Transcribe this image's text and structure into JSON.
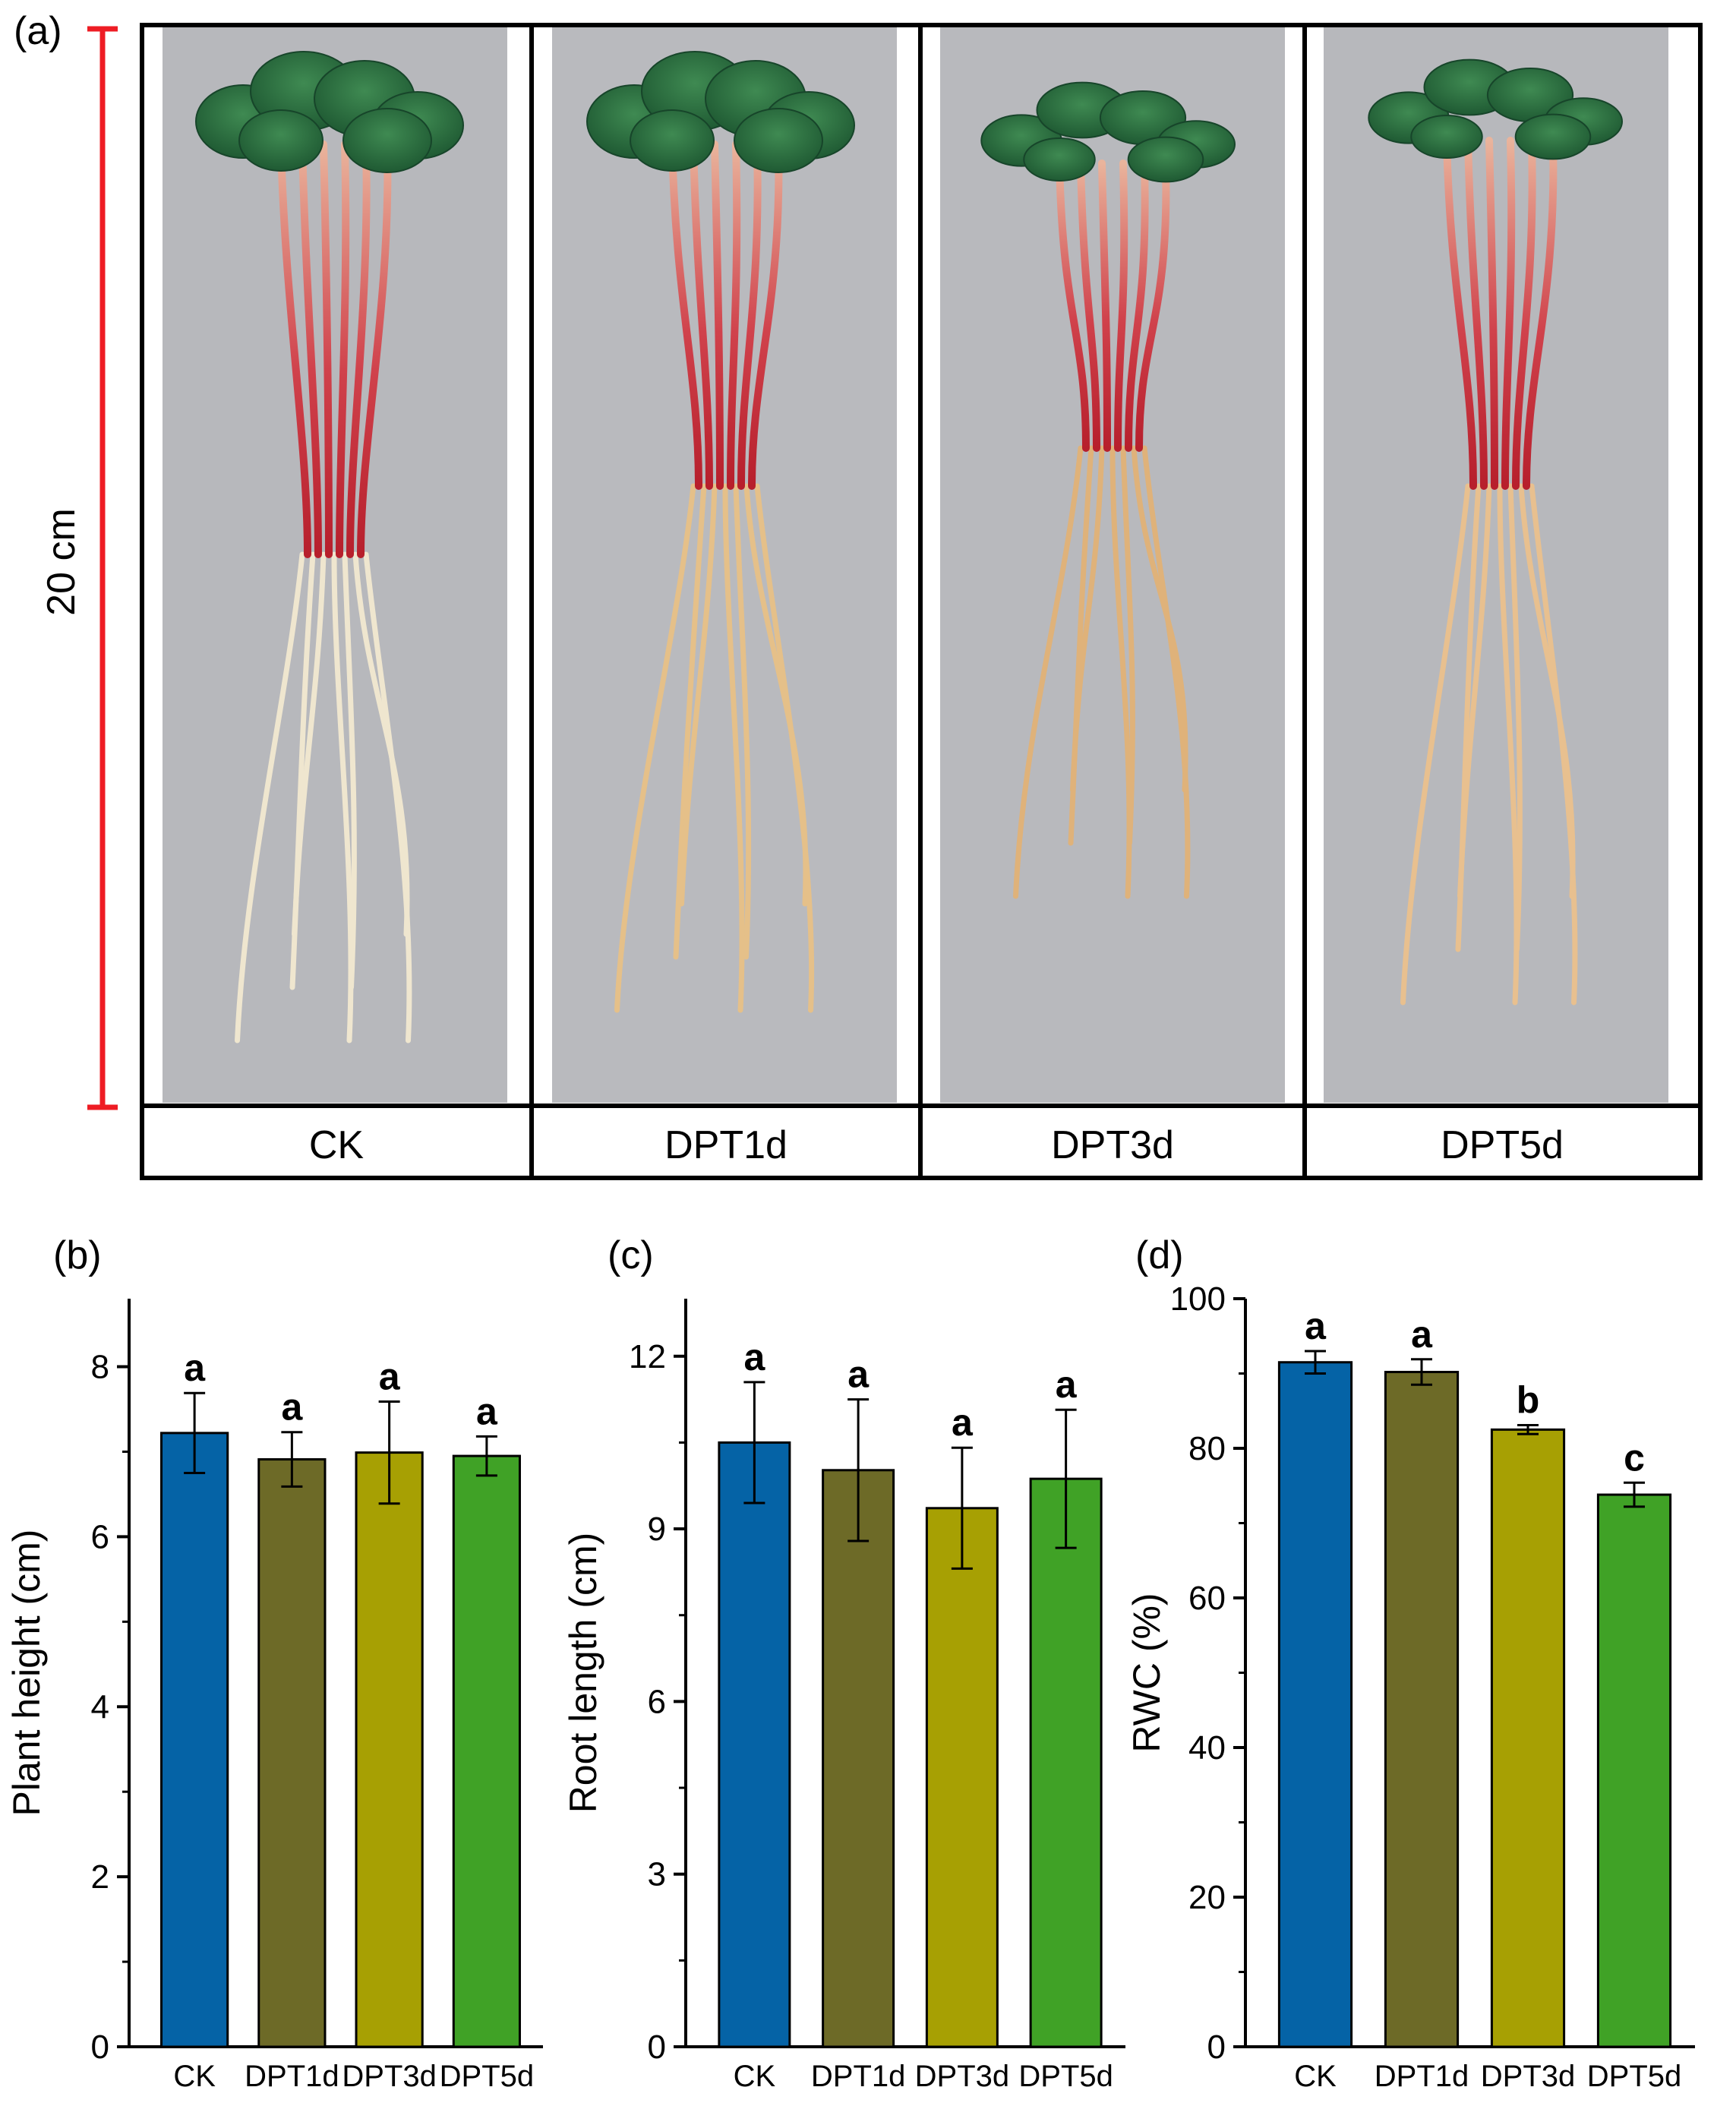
{
  "panel_a": {
    "label": "(a)",
    "scale_label": "20 cm",
    "treatments": [
      "CK",
      "DPT1d",
      "DPT3d",
      "DPT5d"
    ]
  },
  "colors": {
    "CK": "#0563a6",
    "DPT1d": "#6d6a27",
    "DPT3d": "#a7a003",
    "DPT5d": "#40a226",
    "scale_bar": "#ee1c24",
    "photo_bg": "#b7b8bc"
  },
  "chart_data": [
    {
      "id": "b",
      "panel_label": "(b)",
      "type": "bar",
      "title": "",
      "xlabel": "",
      "ylabel": "Plant height (cm)",
      "categories": [
        "CK",
        "DPT1d",
        "DPT3d",
        "DPT5d"
      ],
      "values": [
        7.22,
        6.91,
        6.99,
        6.95
      ],
      "errors": [
        0.47,
        0.32,
        0.6,
        0.23
      ],
      "significance": [
        "a",
        "a",
        "a",
        "a"
      ],
      "ylim": [
        0,
        8.8
      ],
      "yticks": [
        0,
        2,
        4,
        6,
        8
      ]
    },
    {
      "id": "c",
      "panel_label": "(c)",
      "type": "bar",
      "title": "",
      "xlabel": "",
      "ylabel": "Root length (cm)",
      "categories": [
        "CK",
        "DPT1d",
        "DPT3d",
        "DPT5d"
      ],
      "values": [
        10.5,
        10.02,
        9.36,
        9.87
      ],
      "errors": [
        1.05,
        1.23,
        1.05,
        1.2
      ],
      "significance": [
        "a",
        "a",
        "a",
        "a"
      ],
      "ylim": [
        0,
        13
      ],
      "yticks": [
        0,
        3,
        6,
        9,
        12
      ]
    },
    {
      "id": "d",
      "panel_label": "(d)",
      "type": "bar",
      "title": "",
      "xlabel": "",
      "ylabel": "RWC (%)",
      "categories": [
        "CK",
        "DPT1d",
        "DPT3d",
        "DPT5d"
      ],
      "values": [
        91.5,
        90.2,
        82.5,
        73.8
      ],
      "errors": [
        1.5,
        1.7,
        0.6,
        1.6
      ],
      "significance": [
        "a",
        "a",
        "b",
        "c"
      ],
      "ylim": [
        0,
        100
      ],
      "yticks": [
        0,
        20,
        40,
        60,
        80,
        100
      ]
    }
  ]
}
